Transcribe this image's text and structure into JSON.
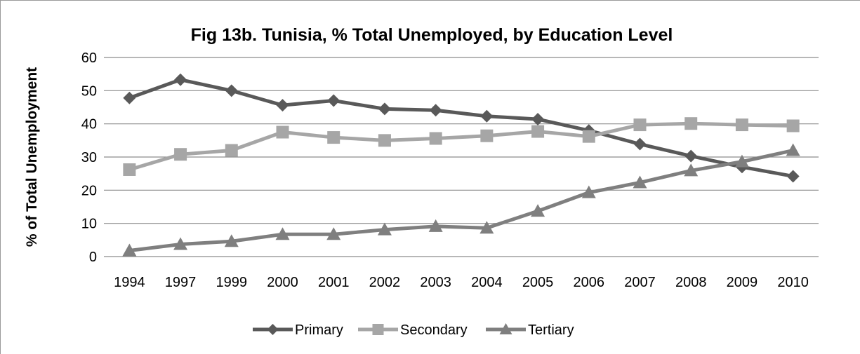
{
  "chart_data": {
    "type": "line",
    "title": "Fig 13b. Tunisia, % Total Unemployed, by Education Level",
    "xlabel": "",
    "ylabel": "% of Total Unemployment",
    "ylim": [
      0,
      60
    ],
    "yticks": [
      "0",
      "10",
      "20",
      "30",
      "40",
      "50",
      "60"
    ],
    "grid": true,
    "legend_position": "bottom",
    "categories": [
      "1994",
      "1997",
      "1999",
      "2000",
      "2001",
      "2002",
      "2003",
      "2004",
      "2005",
      "2006",
      "2007",
      "2008",
      "2009",
      "2010"
    ],
    "series": [
      {
        "name": "Primary",
        "color": "#595959",
        "marker": "diamond",
        "values": [
          47.8,
          53.3,
          50.0,
          45.6,
          47.0,
          44.5,
          44.1,
          42.3,
          41.4,
          38.0,
          33.9,
          30.3,
          27.0,
          24.2
        ]
      },
      {
        "name": "Secondary",
        "color": "#a6a6a6",
        "marker": "square",
        "values": [
          26.2,
          30.8,
          32.0,
          37.5,
          35.9,
          35.0,
          35.6,
          36.4,
          37.7,
          36.2,
          39.7,
          40.1,
          39.7,
          39.4
        ]
      },
      {
        "name": "Tertiary",
        "color": "#7f7f7f",
        "marker": "triangle",
        "values": [
          1.8,
          3.7,
          4.6,
          6.7,
          6.7,
          8.1,
          9.1,
          8.6,
          13.7,
          19.3,
          22.3,
          25.9,
          28.6,
          32.0
        ]
      }
    ]
  }
}
